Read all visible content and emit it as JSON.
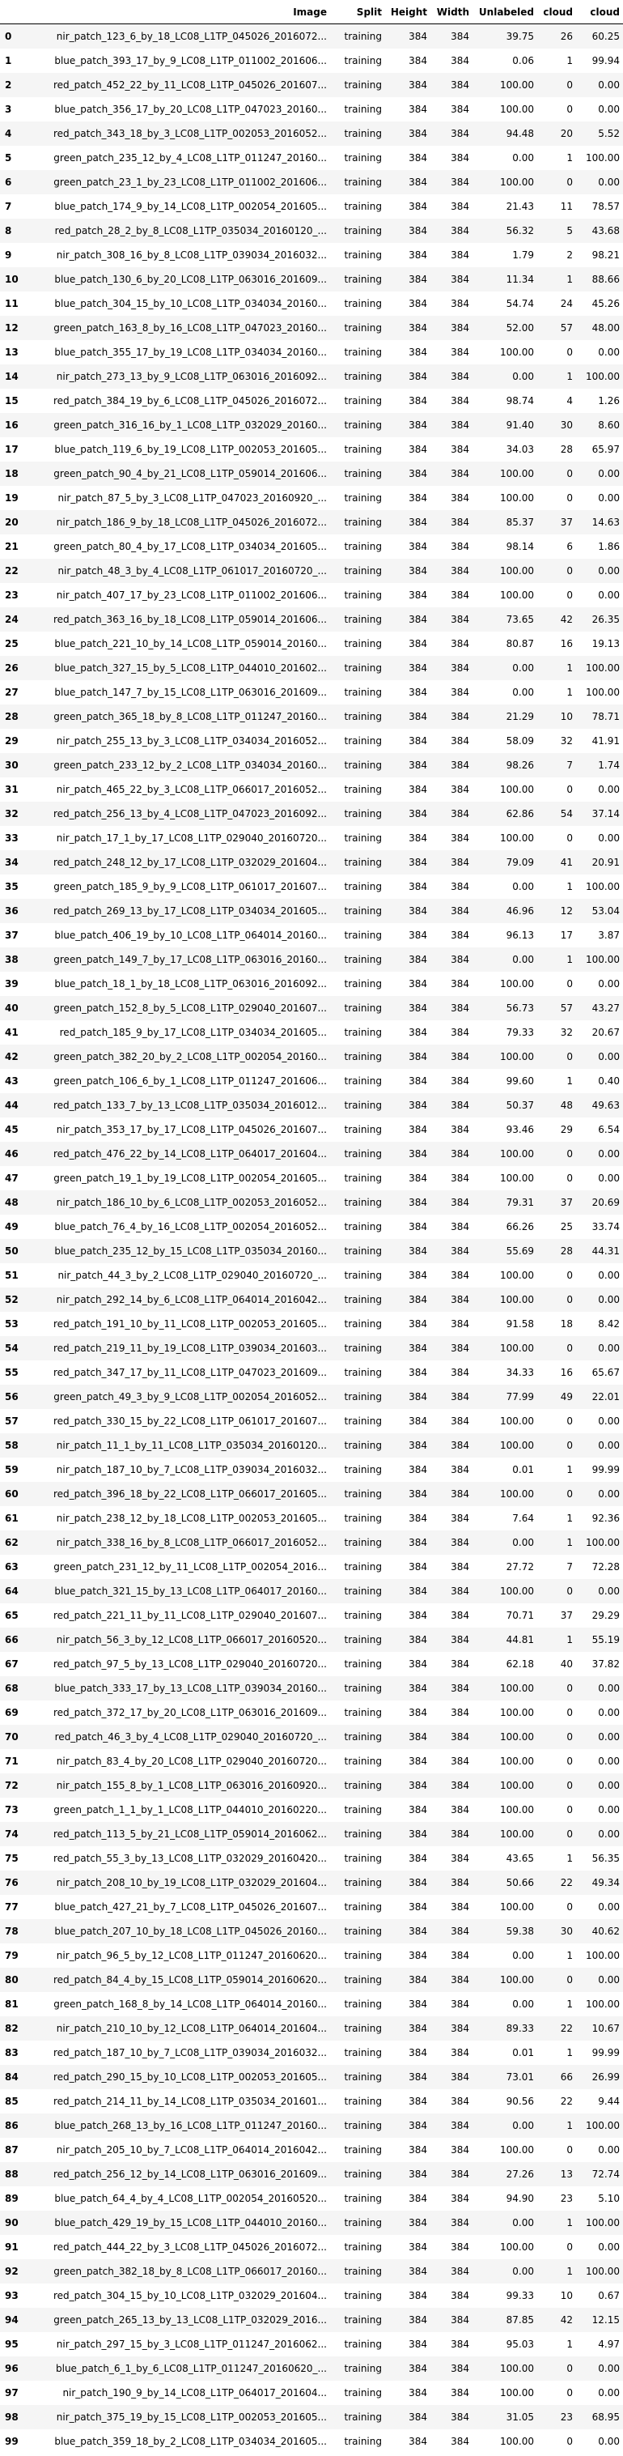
{
  "table": {
    "index_header": "",
    "columns": [
      "Image",
      "Split",
      "Height",
      "Width",
      "Unlabeled",
      "cloud",
      "cloud"
    ],
    "rows": [
      [
        "0",
        "nir_patch_123_6_by_18_LC08_L1TP_045026_2016072...",
        "training",
        "384",
        "384",
        "39.75",
        "26",
        "60.25"
      ],
      [
        "1",
        "blue_patch_393_17_by_9_LC08_L1TP_011002_201606...",
        "training",
        "384",
        "384",
        "0.06",
        "1",
        "99.94"
      ],
      [
        "2",
        "red_patch_452_22_by_11_LC08_L1TP_045026_201607...",
        "training",
        "384",
        "384",
        "100.00",
        "0",
        "0.00"
      ],
      [
        "3",
        "blue_patch_356_17_by_20_LC08_L1TP_047023_20160...",
        "training",
        "384",
        "384",
        "100.00",
        "0",
        "0.00"
      ],
      [
        "4",
        "red_patch_343_18_by_3_LC08_L1TP_002053_2016052...",
        "training",
        "384",
        "384",
        "94.48",
        "20",
        "5.52"
      ],
      [
        "5",
        "green_patch_235_12_by_4_LC08_L1TP_011247_20160...",
        "training",
        "384",
        "384",
        "0.00",
        "1",
        "100.00"
      ],
      [
        "6",
        "green_patch_23_1_by_23_LC08_L1TP_011002_201606...",
        "training",
        "384",
        "384",
        "100.00",
        "0",
        "0.00"
      ],
      [
        "7",
        "blue_patch_174_9_by_14_LC08_L1TP_002054_201605...",
        "training",
        "384",
        "384",
        "21.43",
        "11",
        "78.57"
      ],
      [
        "8",
        "red_patch_28_2_by_8_LC08_L1TP_035034_20160120_...",
        "training",
        "384",
        "384",
        "56.32",
        "5",
        "43.68"
      ],
      [
        "9",
        "nir_patch_308_16_by_8_LC08_L1TP_039034_2016032...",
        "training",
        "384",
        "384",
        "1.79",
        "2",
        "98.21"
      ],
      [
        "10",
        "blue_patch_130_6_by_20_LC08_L1TP_063016_201609...",
        "training",
        "384",
        "384",
        "11.34",
        "1",
        "88.66"
      ],
      [
        "11",
        "blue_patch_304_15_by_10_LC08_L1TP_034034_20160...",
        "training",
        "384",
        "384",
        "54.74",
        "24",
        "45.26"
      ],
      [
        "12",
        "green_patch_163_8_by_16_LC08_L1TP_047023_20160...",
        "training",
        "384",
        "384",
        "52.00",
        "57",
        "48.00"
      ],
      [
        "13",
        "blue_patch_355_17_by_19_LC08_L1TP_034034_20160...",
        "training",
        "384",
        "384",
        "100.00",
        "0",
        "0.00"
      ],
      [
        "14",
        "nir_patch_273_13_by_9_LC08_L1TP_063016_2016092...",
        "training",
        "384",
        "384",
        "0.00",
        "1",
        "100.00"
      ],
      [
        "15",
        "red_patch_384_19_by_6_LC08_L1TP_045026_2016072...",
        "training",
        "384",
        "384",
        "98.74",
        "4",
        "1.26"
      ],
      [
        "16",
        "green_patch_316_16_by_1_LC08_L1TP_032029_20160...",
        "training",
        "384",
        "384",
        "91.40",
        "30",
        "8.60"
      ],
      [
        "17",
        "blue_patch_119_6_by_19_LC08_L1TP_002053_201605...",
        "training",
        "384",
        "384",
        "34.03",
        "28",
        "65.97"
      ],
      [
        "18",
        "green_patch_90_4_by_21_LC08_L1TP_059014_201606...",
        "training",
        "384",
        "384",
        "100.00",
        "0",
        "0.00"
      ],
      [
        "19",
        "nir_patch_87_5_by_3_LC08_L1TP_047023_20160920_...",
        "training",
        "384",
        "384",
        "100.00",
        "0",
        "0.00"
      ],
      [
        "20",
        "nir_patch_186_9_by_18_LC08_L1TP_045026_2016072...",
        "training",
        "384",
        "384",
        "85.37",
        "37",
        "14.63"
      ],
      [
        "21",
        "green_patch_80_4_by_17_LC08_L1TP_034034_201605...",
        "training",
        "384",
        "384",
        "98.14",
        "6",
        "1.86"
      ],
      [
        "22",
        "nir_patch_48_3_by_4_LC08_L1TP_061017_20160720_...",
        "training",
        "384",
        "384",
        "100.00",
        "0",
        "0.00"
      ],
      [
        "23",
        "nir_patch_407_17_by_23_LC08_L1TP_011002_201606...",
        "training",
        "384",
        "384",
        "100.00",
        "0",
        "0.00"
      ],
      [
        "24",
        "red_patch_363_16_by_18_LC08_L1TP_059014_201606...",
        "training",
        "384",
        "384",
        "73.65",
        "42",
        "26.35"
      ],
      [
        "25",
        "blue_patch_221_10_by_14_LC08_L1TP_059014_20160...",
        "training",
        "384",
        "384",
        "80.87",
        "16",
        "19.13"
      ],
      [
        "26",
        "blue_patch_327_15_by_5_LC08_L1TP_044010_201602...",
        "training",
        "384",
        "384",
        "0.00",
        "1",
        "100.00"
      ],
      [
        "27",
        "blue_patch_147_7_by_15_LC08_L1TP_063016_201609...",
        "training",
        "384",
        "384",
        "0.00",
        "1",
        "100.00"
      ],
      [
        "28",
        "green_patch_365_18_by_8_LC08_L1TP_011247_20160...",
        "training",
        "384",
        "384",
        "21.29",
        "10",
        "78.71"
      ],
      [
        "29",
        "nir_patch_255_13_by_3_LC08_L1TP_034034_2016052...",
        "training",
        "384",
        "384",
        "58.09",
        "32",
        "41.91"
      ],
      [
        "30",
        "green_patch_233_12_by_2_LC08_L1TP_034034_20160...",
        "training",
        "384",
        "384",
        "98.26",
        "7",
        "1.74"
      ],
      [
        "31",
        "nir_patch_465_22_by_3_LC08_L1TP_066017_2016052...",
        "training",
        "384",
        "384",
        "100.00",
        "0",
        "0.00"
      ],
      [
        "32",
        "red_patch_256_13_by_4_LC08_L1TP_047023_2016092...",
        "training",
        "384",
        "384",
        "62.86",
        "54",
        "37.14"
      ],
      [
        "33",
        "nir_patch_17_1_by_17_LC08_L1TP_029040_20160720...",
        "training",
        "384",
        "384",
        "100.00",
        "0",
        "0.00"
      ],
      [
        "34",
        "red_patch_248_12_by_17_LC08_L1TP_032029_201604...",
        "training",
        "384",
        "384",
        "79.09",
        "41",
        "20.91"
      ],
      [
        "35",
        "green_patch_185_9_by_9_LC08_L1TP_061017_201607...",
        "training",
        "384",
        "384",
        "0.00",
        "1",
        "100.00"
      ],
      [
        "36",
        "red_patch_269_13_by_17_LC08_L1TP_034034_201605...",
        "training",
        "384",
        "384",
        "46.96",
        "12",
        "53.04"
      ],
      [
        "37",
        "blue_patch_406_19_by_10_LC08_L1TP_064014_20160...",
        "training",
        "384",
        "384",
        "96.13",
        "17",
        "3.87"
      ],
      [
        "38",
        "green_patch_149_7_by_17_LC08_L1TP_063016_20160...",
        "training",
        "384",
        "384",
        "0.00",
        "1",
        "100.00"
      ],
      [
        "39",
        "blue_patch_18_1_by_18_LC08_L1TP_063016_2016092...",
        "training",
        "384",
        "384",
        "100.00",
        "0",
        "0.00"
      ],
      [
        "40",
        "green_patch_152_8_by_5_LC08_L1TP_029040_201607...",
        "training",
        "384",
        "384",
        "56.73",
        "57",
        "43.27"
      ],
      [
        "41",
        "red_patch_185_9_by_17_LC08_L1TP_034034_201605...",
        "training",
        "384",
        "384",
        "79.33",
        "32",
        "20.67"
      ],
      [
        "42",
        "green_patch_382_20_by_2_LC08_L1TP_002054_20160...",
        "training",
        "384",
        "384",
        "100.00",
        "0",
        "0.00"
      ],
      [
        "43",
        "green_patch_106_6_by_1_LC08_L1TP_011247_201606...",
        "training",
        "384",
        "384",
        "99.60",
        "1",
        "0.40"
      ],
      [
        "44",
        "red_patch_133_7_by_13_LC08_L1TP_035034_2016012...",
        "training",
        "384",
        "384",
        "50.37",
        "48",
        "49.63"
      ],
      [
        "45",
        "nir_patch_353_17_by_17_LC08_L1TP_045026_201607...",
        "training",
        "384",
        "384",
        "93.46",
        "29",
        "6.54"
      ],
      [
        "46",
        "red_patch_476_22_by_14_LC08_L1TP_064017_201604...",
        "training",
        "384",
        "384",
        "100.00",
        "0",
        "0.00"
      ],
      [
        "47",
        "green_patch_19_1_by_19_LC08_L1TP_002054_201605...",
        "training",
        "384",
        "384",
        "100.00",
        "0",
        "0.00"
      ],
      [
        "48",
        "nir_patch_186_10_by_6_LC08_L1TP_002053_2016052...",
        "training",
        "384",
        "384",
        "79.31",
        "37",
        "20.69"
      ],
      [
        "49",
        "blue_patch_76_4_by_16_LC08_L1TP_002054_2016052...",
        "training",
        "384",
        "384",
        "66.26",
        "25",
        "33.74"
      ],
      [
        "50",
        "blue_patch_235_12_by_15_LC08_L1TP_035034_20160...",
        "training",
        "384",
        "384",
        "55.69",
        "28",
        "44.31"
      ],
      [
        "51",
        "nir_patch_44_3_by_2_LC08_L1TP_029040_20160720_...",
        "training",
        "384",
        "384",
        "100.00",
        "0",
        "0.00"
      ],
      [
        "52",
        "nir_patch_292_14_by_6_LC08_L1TP_064014_2016042...",
        "training",
        "384",
        "384",
        "100.00",
        "0",
        "0.00"
      ],
      [
        "53",
        "red_patch_191_10_by_11_LC08_L1TP_002053_201605...",
        "training",
        "384",
        "384",
        "91.58",
        "18",
        "8.42"
      ],
      [
        "54",
        "red_patch_219_11_by_19_LC08_L1TP_039034_201603...",
        "training",
        "384",
        "384",
        "100.00",
        "0",
        "0.00"
      ],
      [
        "55",
        "red_patch_347_17_by_11_LC08_L1TP_047023_201609...",
        "training",
        "384",
        "384",
        "34.33",
        "16",
        "65.67"
      ],
      [
        "56",
        "green_patch_49_3_by_9_LC08_L1TP_002054_2016052...",
        "training",
        "384",
        "384",
        "77.99",
        "49",
        "22.01"
      ],
      [
        "57",
        "red_patch_330_15_by_22_LC08_L1TP_061017_201607...",
        "training",
        "384",
        "384",
        "100.00",
        "0",
        "0.00"
      ],
      [
        "58",
        "nir_patch_11_1_by_11_LC08_L1TP_035034_20160120...",
        "training",
        "384",
        "384",
        "100.00",
        "0",
        "0.00"
      ],
      [
        "59",
        "nir_patch_187_10_by_7_LC08_L1TP_039034_2016032...",
        "training",
        "384",
        "384",
        "0.01",
        "1",
        "99.99"
      ],
      [
        "60",
        "red_patch_396_18_by_22_LC08_L1TP_066017_201605...",
        "training",
        "384",
        "384",
        "100.00",
        "0",
        "0.00"
      ],
      [
        "61",
        "nir_patch_238_12_by_18_LC08_L1TP_002053_201605...",
        "training",
        "384",
        "384",
        "7.64",
        "1",
        "92.36"
      ],
      [
        "62",
        "nir_patch_338_16_by_8_LC08_L1TP_066017_2016052...",
        "training",
        "384",
        "384",
        "0.00",
        "1",
        "100.00"
      ],
      [
        "63",
        "green_patch_231_12_by_11_LC08_L1TP_002054_2016...",
        "training",
        "384",
        "384",
        "27.72",
        "7",
        "72.28"
      ],
      [
        "64",
        "blue_patch_321_15_by_13_LC08_L1TP_064017_20160...",
        "training",
        "384",
        "384",
        "100.00",
        "0",
        "0.00"
      ],
      [
        "65",
        "red_patch_221_11_by_11_LC08_L1TP_029040_201607...",
        "training",
        "384",
        "384",
        "70.71",
        "37",
        "29.29"
      ],
      [
        "66",
        "nir_patch_56_3_by_12_LC08_L1TP_066017_20160520...",
        "training",
        "384",
        "384",
        "44.81",
        "1",
        "55.19"
      ],
      [
        "67",
        "red_patch_97_5_by_13_LC08_L1TP_029040_20160720...",
        "training",
        "384",
        "384",
        "62.18",
        "40",
        "37.82"
      ],
      [
        "68",
        "blue_patch_333_17_by_13_LC08_L1TP_039034_20160...",
        "training",
        "384",
        "384",
        "100.00",
        "0",
        "0.00"
      ],
      [
        "69",
        "red_patch_372_17_by_20_LC08_L1TP_063016_201609...",
        "training",
        "384",
        "384",
        "100.00",
        "0",
        "0.00"
      ],
      [
        "70",
        "red_patch_46_3_by_4_LC08_L1TP_029040_20160720_...",
        "training",
        "384",
        "384",
        "100.00",
        "0",
        "0.00"
      ],
      [
        "71",
        "nir_patch_83_4_by_20_LC08_L1TP_029040_20160720...",
        "training",
        "384",
        "384",
        "100.00",
        "0",
        "0.00"
      ],
      [
        "72",
        "nir_patch_155_8_by_1_LC08_L1TP_063016_20160920...",
        "training",
        "384",
        "384",
        "100.00",
        "0",
        "0.00"
      ],
      [
        "73",
        "green_patch_1_1_by_1_LC08_L1TP_044010_20160220...",
        "training",
        "384",
        "384",
        "100.00",
        "0",
        "0.00"
      ],
      [
        "74",
        "red_patch_113_5_by_21_LC08_L1TP_059014_2016062...",
        "training",
        "384",
        "384",
        "100.00",
        "0",
        "0.00"
      ],
      [
        "75",
        "red_patch_55_3_by_13_LC08_L1TP_032029_20160420...",
        "training",
        "384",
        "384",
        "43.65",
        "1",
        "56.35"
      ],
      [
        "76",
        "nir_patch_208_10_by_19_LC08_L1TP_032029_201604...",
        "training",
        "384",
        "384",
        "50.66",
        "22",
        "49.34"
      ],
      [
        "77",
        "blue_patch_427_21_by_7_LC08_L1TP_045026_201607...",
        "training",
        "384",
        "384",
        "100.00",
        "0",
        "0.00"
      ],
      [
        "78",
        "blue_patch_207_10_by_18_LC08_L1TP_045026_20160...",
        "training",
        "384",
        "384",
        "59.38",
        "30",
        "40.62"
      ],
      [
        "79",
        "nir_patch_96_5_by_12_LC08_L1TP_011247_20160620...",
        "training",
        "384",
        "384",
        "0.00",
        "1",
        "100.00"
      ],
      [
        "80",
        "red_patch_84_4_by_15_LC08_L1TP_059014_20160620...",
        "training",
        "384",
        "384",
        "100.00",
        "0",
        "0.00"
      ],
      [
        "81",
        "green_patch_168_8_by_14_LC08_L1TP_064014_20160...",
        "training",
        "384",
        "384",
        "0.00",
        "1",
        "100.00"
      ],
      [
        "82",
        "nir_patch_210_10_by_12_LC08_L1TP_064014_201604...",
        "training",
        "384",
        "384",
        "89.33",
        "22",
        "10.67"
      ],
      [
        "83",
        "red_patch_187_10_by_7_LC08_L1TP_039034_2016032...",
        "training",
        "384",
        "384",
        "0.01",
        "1",
        "99.99"
      ],
      [
        "84",
        "red_patch_290_15_by_10_LC08_L1TP_002053_201605...",
        "training",
        "384",
        "384",
        "73.01",
        "66",
        "26.99"
      ],
      [
        "85",
        "red_patch_214_11_by_14_LC08_L1TP_035034_201601...",
        "training",
        "384",
        "384",
        "90.56",
        "22",
        "9.44"
      ],
      [
        "86",
        "blue_patch_268_13_by_16_LC08_L1TP_011247_20160...",
        "training",
        "384",
        "384",
        "0.00",
        "1",
        "100.00"
      ],
      [
        "87",
        "nir_patch_205_10_by_7_LC08_L1TP_064014_2016042...",
        "training",
        "384",
        "384",
        "100.00",
        "0",
        "0.00"
      ],
      [
        "88",
        "red_patch_256_12_by_14_LC08_L1TP_063016_201609...",
        "training",
        "384",
        "384",
        "27.26",
        "13",
        "72.74"
      ],
      [
        "89",
        "blue_patch_64_4_by_4_LC08_L1TP_002054_20160520...",
        "training",
        "384",
        "384",
        "94.90",
        "23",
        "5.10"
      ],
      [
        "90",
        "blue_patch_429_19_by_15_LC08_L1TP_044010_20160...",
        "training",
        "384",
        "384",
        "0.00",
        "1",
        "100.00"
      ],
      [
        "91",
        "red_patch_444_22_by_3_LC08_L1TP_045026_2016072...",
        "training",
        "384",
        "384",
        "100.00",
        "0",
        "0.00"
      ],
      [
        "92",
        "green_patch_382_18_by_8_LC08_L1TP_066017_20160...",
        "training",
        "384",
        "384",
        "0.00",
        "1",
        "100.00"
      ],
      [
        "93",
        "red_patch_304_15_by_10_LC08_L1TP_032029_201604...",
        "training",
        "384",
        "384",
        "99.33",
        "10",
        "0.67"
      ],
      [
        "94",
        "green_patch_265_13_by_13_LC08_L1TP_032029_2016...",
        "training",
        "384",
        "384",
        "87.85",
        "42",
        "12.15"
      ],
      [
        "95",
        "nir_patch_297_15_by_3_LC08_L1TP_011247_2016062...",
        "training",
        "384",
        "384",
        "95.03",
        "1",
        "4.97"
      ],
      [
        "96",
        "blue_patch_6_1_by_6_LC08_L1TP_011247_20160620_...",
        "training",
        "384",
        "384",
        "100.00",
        "0",
        "0.00"
      ],
      [
        "97",
        "nir_patch_190_9_by_14_LC08_L1TP_064017_201604...",
        "training",
        "384",
        "384",
        "100.00",
        "0",
        "0.00"
      ],
      [
        "98",
        "nir_patch_375_19_by_15_LC08_L1TP_002053_201605...",
        "training",
        "384",
        "384",
        "31.05",
        "23",
        "68.95"
      ],
      [
        "99",
        "blue_patch_359_18_by_2_LC08_L1TP_034034_201605...",
        "training",
        "384",
        "384",
        "100.00",
        "0",
        "0.00"
      ]
    ]
  }
}
